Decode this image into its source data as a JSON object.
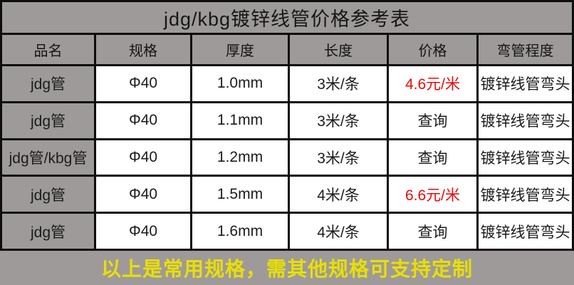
{
  "title": "jdg/kbg镀锌线管价格参考表",
  "table": {
    "headers": [
      "品名",
      "规格",
      "厚度",
      "长度",
      "价格",
      "弯管程度"
    ],
    "rows": [
      {
        "name": "jdg管",
        "spec": "Φ40",
        "thickness": "1.0mm",
        "length": "3米/条",
        "price": "4.6元/米",
        "price_variant": "red",
        "bend": "镀锌线管弯头"
      },
      {
        "name": "jdg管",
        "spec": "Φ40",
        "thickness": "1.1mm",
        "length": "3米/条",
        "price": "查询",
        "price_variant": "normal",
        "bend": "镀锌线管弯头"
      },
      {
        "name": "jdg管/kbg管",
        "spec": "Φ40",
        "thickness": "1.2mm",
        "length": "3米/条",
        "price": "查询",
        "price_variant": "normal",
        "bend": "镀锌线管弯头"
      },
      {
        "name": "jdg管",
        "spec": "Φ40",
        "thickness": "1.5mm",
        "length": "4米/条",
        "price": "6.6元/米",
        "price_variant": "red",
        "bend": "镀锌线管弯头"
      },
      {
        "name": "jdg管",
        "spec": "Φ40",
        "thickness": "1.6mm",
        "length": "4米/条",
        "price": "查询",
        "price_variant": "normal",
        "bend": "镀锌线管弯头"
      }
    ]
  },
  "footer": {
    "note": "以上是常用规格，需其他规格可支持定制"
  },
  "colors": {
    "background_gray": "#9e9a9a",
    "cell_white": "#ffffff",
    "border_black": "#0d0d0d",
    "price_red": "#e60b0b",
    "footer_yellow": "#e9e000",
    "text_black": "#1c1c1c"
  },
  "chart_data": {
    "type": "table",
    "title": "jdg/kbg镀锌线管价格参考表",
    "columns": [
      "品名",
      "规格",
      "厚度",
      "长度",
      "价格",
      "弯管程度"
    ],
    "rows": [
      [
        "jdg管",
        "Φ40",
        "1.0mm",
        "3米/条",
        "4.6元/米",
        "镀锌线管弯头"
      ],
      [
        "jdg管",
        "Φ40",
        "1.1mm",
        "3米/条",
        "查询",
        "镀锌线管弯头"
      ],
      [
        "jdg管/kbg管",
        "Φ40",
        "1.2mm",
        "3米/条",
        "查询",
        "镀锌线管弯头"
      ],
      [
        "jdg管",
        "Φ40",
        "1.5mm",
        "4米/条",
        "6.6元/米",
        "镀锌线管弯头"
      ],
      [
        "jdg管",
        "Φ40",
        "1.6mm",
        "4米/条",
        "查询",
        "镀锌线管弯头"
      ]
    ],
    "note": "以上是常用规格，需其他规格可支持定制"
  }
}
